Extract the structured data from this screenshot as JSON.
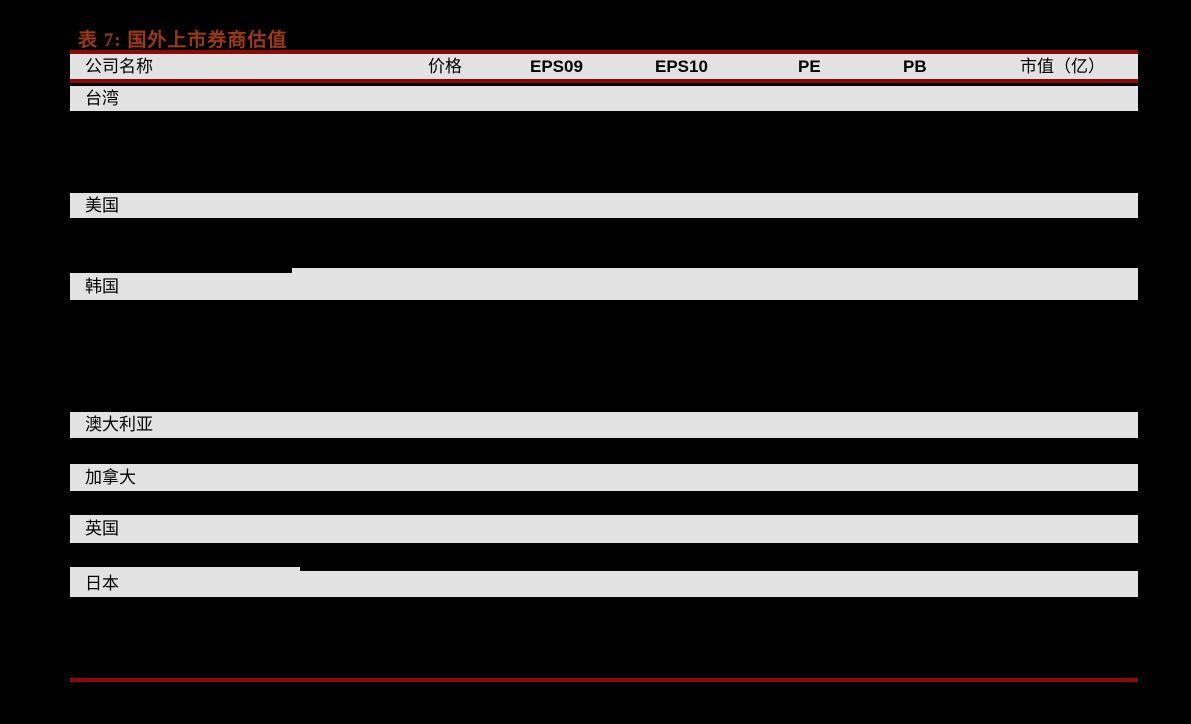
{
  "document": {
    "title": "表 7:  国外上市券商估值",
    "table": {
      "header": {
        "col_company": "公司名称",
        "col_price": "价格",
        "col_eps09": "EPS09",
        "col_eps10": "EPS10",
        "col_pe": "PE",
        "col_pb": "PB",
        "col_mktcap": "市值（亿）"
      },
      "sections": [
        {
          "label": "台湾"
        },
        {
          "label": "美国"
        },
        {
          "label": "韩国"
        },
        {
          "label": "澳大利亚"
        },
        {
          "label": "加拿大"
        },
        {
          "label": "英国"
        },
        {
          "label": "日本"
        }
      ],
      "rows_visible": false
    },
    "colors": {
      "page_background": "#000000",
      "accent_rule_red": "#8b0a0a",
      "title_color": "#9d3a0f",
      "band_gray": "#e2e2e2",
      "text_color": "#000000"
    }
  }
}
